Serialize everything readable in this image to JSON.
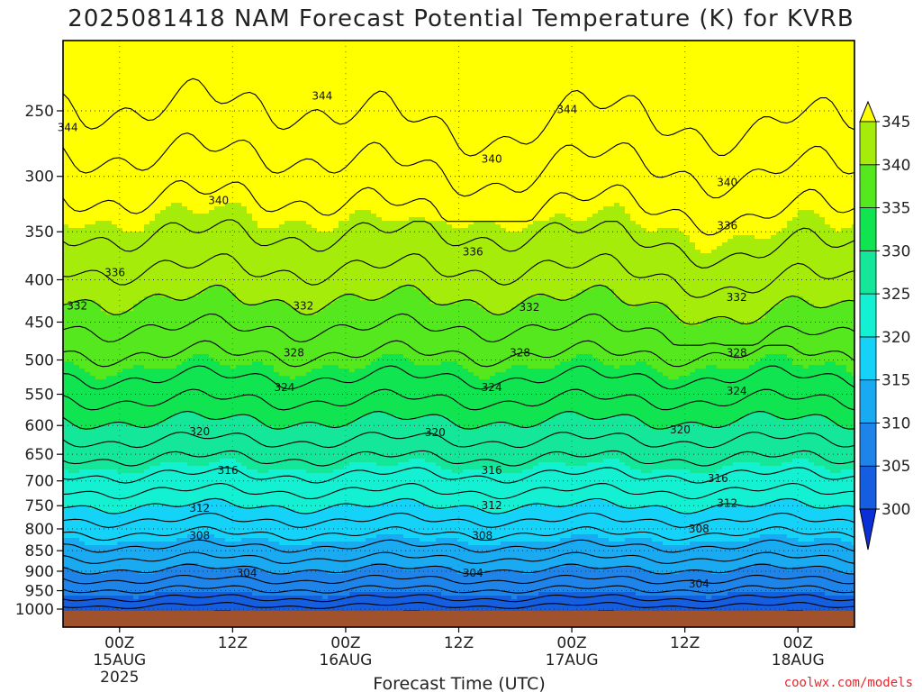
{
  "title": "2025081418 NAM Forecast Potential Temperature (K) for KVRB",
  "credit": "coolwx.com/models",
  "chart_data": {
    "type": "heatmap",
    "title": "2025081418 NAM Forecast Potential Temperature (K) for KVRB",
    "xlabel": "Forecast Time (UTC)",
    "ylabel": "",
    "variable": "Potential Temperature (K)",
    "y_scale": "log-pressure (hPa), inverted",
    "ylim": [
      1000,
      200
    ],
    "y_ticks": [
      250,
      300,
      350,
      400,
      450,
      500,
      550,
      600,
      650,
      700,
      750,
      800,
      850,
      900,
      950,
      1000
    ],
    "x_ticks": [
      {
        "hour": 6,
        "lines": [
          "00Z",
          "15AUG",
          "2025"
        ]
      },
      {
        "hour": 18,
        "lines": [
          "12Z"
        ]
      },
      {
        "hour": 30,
        "lines": [
          "00Z",
          "16AUG"
        ]
      },
      {
        "hour": 42,
        "lines": [
          "12Z"
        ]
      },
      {
        "hour": 54,
        "lines": [
          "00Z",
          "17AUG"
        ]
      },
      {
        "hour": 66,
        "lines": [
          "12Z"
        ]
      },
      {
        "hour": 78,
        "lines": [
          "00Z",
          "18AUG"
        ]
      }
    ],
    "xlim_hours": [
      0,
      84
    ],
    "grid": true,
    "colorbar": {
      "levels": [
        300,
        305,
        310,
        315,
        320,
        325,
        330,
        335,
        340,
        345
      ],
      "labels": [
        "300",
        "305",
        "310",
        "315",
        "320",
        "325",
        "330",
        "335",
        "340",
        "345"
      ],
      "extend": "both",
      "colors": [
        "#0a2fd6",
        "#155ee0",
        "#1f84ea",
        "#1aaaf2",
        "#14d2f8",
        "#14f0d2",
        "#14e69a",
        "#10e450",
        "#55e81e",
        "#a5ec0a",
        "#ffff00"
      ]
    },
    "contour_interval": 2,
    "contour_labels": [
      {
        "value": 344,
        "time_hr": 0.5,
        "p": 262
      },
      {
        "value": 344,
        "time_hr": 27.5,
        "p": 240
      },
      {
        "value": 344,
        "time_hr": 53.5,
        "p": 249
      },
      {
        "value": 340,
        "time_hr": 16.5,
        "p": 321
      },
      {
        "value": 340,
        "time_hr": 45.5,
        "p": 286
      },
      {
        "value": 340,
        "time_hr": 70.5,
        "p": 305
      },
      {
        "value": 336,
        "time_hr": 5.5,
        "p": 392
      },
      {
        "value": 336,
        "time_hr": 43.5,
        "p": 370
      },
      {
        "value": 336,
        "time_hr": 70.5,
        "p": 344
      },
      {
        "value": 332,
        "time_hr": 1.5,
        "p": 430
      },
      {
        "value": 332,
        "time_hr": 25.5,
        "p": 430
      },
      {
        "value": 332,
        "time_hr": 49.5,
        "p": 432
      },
      {
        "value": 332,
        "time_hr": 71.5,
        "p": 420
      },
      {
        "value": 328,
        "time_hr": 24.5,
        "p": 490
      },
      {
        "value": 328,
        "time_hr": 48.5,
        "p": 490
      },
      {
        "value": 328,
        "time_hr": 71.5,
        "p": 490
      },
      {
        "value": 324,
        "time_hr": 23.5,
        "p": 540
      },
      {
        "value": 324,
        "time_hr": 45.5,
        "p": 540
      },
      {
        "value": 324,
        "time_hr": 71.5,
        "p": 545
      },
      {
        "value": 320,
        "time_hr": 14.5,
        "p": 610
      },
      {
        "value": 320,
        "time_hr": 39.5,
        "p": 612
      },
      {
        "value": 320,
        "time_hr": 65.5,
        "p": 607
      },
      {
        "value": 316,
        "time_hr": 17.5,
        "p": 680
      },
      {
        "value": 316,
        "time_hr": 45.5,
        "p": 680
      },
      {
        "value": 316,
        "time_hr": 69.5,
        "p": 695
      },
      {
        "value": 312,
        "time_hr": 14.5,
        "p": 755
      },
      {
        "value": 312,
        "time_hr": 45.5,
        "p": 750
      },
      {
        "value": 312,
        "time_hr": 70.5,
        "p": 745
      },
      {
        "value": 308,
        "time_hr": 14.5,
        "p": 815
      },
      {
        "value": 308,
        "time_hr": 44.5,
        "p": 815
      },
      {
        "value": 308,
        "time_hr": 67.5,
        "p": 800
      },
      {
        "value": 304,
        "time_hr": 19.5,
        "p": 905
      },
      {
        "value": 304,
        "time_hr": 43.5,
        "p": 905
      },
      {
        "value": 304,
        "time_hr": 67.5,
        "p": 932
      }
    ]
  }
}
